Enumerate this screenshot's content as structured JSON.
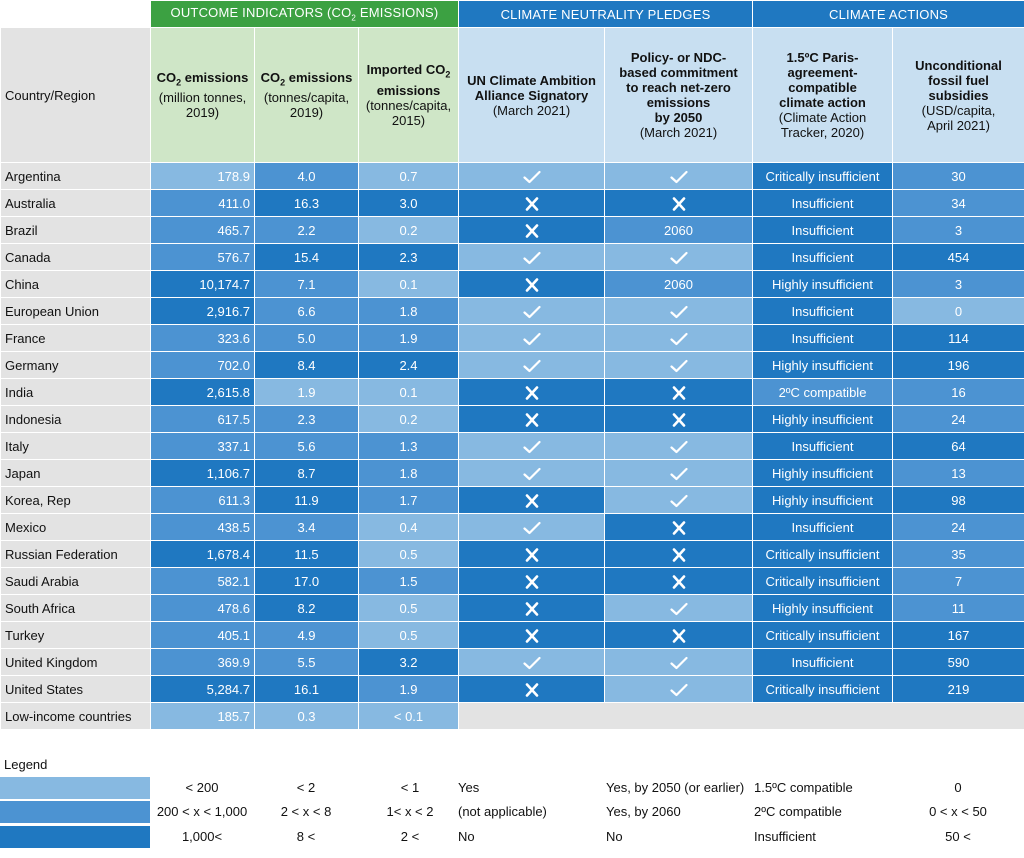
{
  "groups": {
    "outcome": "OUTCOME INDICATORS (CO2 EMISSIONS)",
    "pledges": "CLIMATE NEUTRALITY PLEDGES",
    "actions": "CLIMATE ACTIONS"
  },
  "headers": {
    "country": "Country/Region",
    "co2_total_bold": "CO2 emissions",
    "co2_total_sub": "(million tonnes, 2019)",
    "co2_capita_bold": "CO2 emissions",
    "co2_capita_sub": "(tonnes/capita, 2019)",
    "imported_bold": "Imported CO2 emissions",
    "imported_sub": "(tonnes/capita, 2015)",
    "un_bold": "UN Climate Ambition Alliance Signatory",
    "un_sub": "(March 2021)",
    "policy_bold": "Policy- or NDC-based commitment to reach net-zero emissions by 2050",
    "policy_sub": "(March 2021)",
    "paris_bold": "1.5ºC Paris-agreement-compatible climate action",
    "paris_sub": "(Climate Action Tracker, 2020)",
    "subsidies_bold": "Unconditional fossil fuel subsidies",
    "subsidies_sub": "(USD/capita, April 2021)"
  },
  "level_colors": {
    "1": "#87b9e1",
    "2": "#4c93d2",
    "3": "#1f78c1"
  },
  "rows": [
    {
      "country": "Argentina",
      "co2": "178.9",
      "co2_lvl": 1,
      "cap": "4.0",
      "cap_lvl": 2,
      "imp": "0.7",
      "imp_lvl": 1,
      "un": "check",
      "un_lvl": 1,
      "pol": "check",
      "pol_lvl": 1,
      "pol_text": "",
      "act": "Critically insufficient",
      "act_lvl": 3,
      "sub": "30",
      "sub_lvl": 2
    },
    {
      "country": "Australia",
      "co2": "411.0",
      "co2_lvl": 2,
      "cap": "16.3",
      "cap_lvl": 3,
      "imp": "3.0",
      "imp_lvl": 3,
      "un": "cross",
      "un_lvl": 3,
      "pol": "cross",
      "pol_lvl": 3,
      "pol_text": "",
      "act": "Insufficient",
      "act_lvl": 3,
      "sub": "34",
      "sub_lvl": 2
    },
    {
      "country": "Brazil",
      "co2": "465.7",
      "co2_lvl": 2,
      "cap": "2.2",
      "cap_lvl": 2,
      "imp": "0.2",
      "imp_lvl": 1,
      "un": "cross",
      "un_lvl": 3,
      "pol": "text",
      "pol_lvl": 2,
      "pol_text": "2060",
      "act": "Insufficient",
      "act_lvl": 3,
      "sub": "3",
      "sub_lvl": 2
    },
    {
      "country": "Canada",
      "co2": "576.7",
      "co2_lvl": 2,
      "cap": "15.4",
      "cap_lvl": 3,
      "imp": "2.3",
      "imp_lvl": 3,
      "un": "check",
      "un_lvl": 1,
      "pol": "check",
      "pol_lvl": 1,
      "pol_text": "",
      "act": "Insufficient",
      "act_lvl": 3,
      "sub": "454",
      "sub_lvl": 3
    },
    {
      "country": "China",
      "co2": "10,174.7",
      "co2_lvl": 3,
      "cap": "7.1",
      "cap_lvl": 2,
      "imp": "0.1",
      "imp_lvl": 1,
      "un": "cross",
      "un_lvl": 3,
      "pol": "text",
      "pol_lvl": 2,
      "pol_text": "2060",
      "act": "Highly insufficient",
      "act_lvl": 3,
      "sub": "3",
      "sub_lvl": 2
    },
    {
      "country": "European Union",
      "co2": "2,916.7",
      "co2_lvl": 3,
      "cap": "6.6",
      "cap_lvl": 2,
      "imp": "1.8",
      "imp_lvl": 2,
      "un": "check",
      "un_lvl": 1,
      "pol": "check",
      "pol_lvl": 1,
      "pol_text": "",
      "act": "Insufficient",
      "act_lvl": 3,
      "sub": "0",
      "sub_lvl": 1
    },
    {
      "country": "France",
      "co2": "323.6",
      "co2_lvl": 2,
      "cap": "5.0",
      "cap_lvl": 2,
      "imp": "1.9",
      "imp_lvl": 2,
      "un": "check",
      "un_lvl": 1,
      "pol": "check",
      "pol_lvl": 1,
      "pol_text": "",
      "act": "Insufficient",
      "act_lvl": 3,
      "sub": "114",
      "sub_lvl": 3
    },
    {
      "country": "Germany",
      "co2": "702.0",
      "co2_lvl": 2,
      "cap": "8.4",
      "cap_lvl": 3,
      "imp": "2.4",
      "imp_lvl": 3,
      "un": "check",
      "un_lvl": 1,
      "pol": "check",
      "pol_lvl": 1,
      "pol_text": "",
      "act": "Highly insufficient",
      "act_lvl": 3,
      "sub": "196",
      "sub_lvl": 3
    },
    {
      "country": "India",
      "co2": "2,615.8",
      "co2_lvl": 3,
      "cap": "1.9",
      "cap_lvl": 1,
      "imp": "0.1",
      "imp_lvl": 1,
      "un": "cross",
      "un_lvl": 3,
      "pol": "cross",
      "pol_lvl": 3,
      "pol_text": "",
      "act": "2ºC compatible",
      "act_lvl": 2,
      "sub": "16",
      "sub_lvl": 2
    },
    {
      "country": "Indonesia",
      "co2": "617.5",
      "co2_lvl": 2,
      "cap": "2.3",
      "cap_lvl": 2,
      "imp": "0.2",
      "imp_lvl": 1,
      "un": "cross",
      "un_lvl": 3,
      "pol": "cross",
      "pol_lvl": 3,
      "pol_text": "",
      "act": "Highly insufficient",
      "act_lvl": 3,
      "sub": "24",
      "sub_lvl": 2
    },
    {
      "country": "Italy",
      "co2": "337.1",
      "co2_lvl": 2,
      "cap": "5.6",
      "cap_lvl": 2,
      "imp": "1.3",
      "imp_lvl": 2,
      "un": "check",
      "un_lvl": 1,
      "pol": "check",
      "pol_lvl": 1,
      "pol_text": "",
      "act": "Insufficient",
      "act_lvl": 3,
      "sub": "64",
      "sub_lvl": 3
    },
    {
      "country": "Japan",
      "co2": "1,106.7",
      "co2_lvl": 3,
      "cap": "8.7",
      "cap_lvl": 3,
      "imp": "1.8",
      "imp_lvl": 2,
      "un": "check",
      "un_lvl": 1,
      "pol": "check",
      "pol_lvl": 1,
      "pol_text": "",
      "act": "Highly insufficient",
      "act_lvl": 3,
      "sub": "13",
      "sub_lvl": 2
    },
    {
      "country": "Korea, Rep",
      "co2": "611.3",
      "co2_lvl": 2,
      "cap": "11.9",
      "cap_lvl": 3,
      "imp": "1.7",
      "imp_lvl": 2,
      "un": "cross",
      "un_lvl": 3,
      "pol": "check",
      "pol_lvl": 1,
      "pol_text": "",
      "act": "Highly insufficient",
      "act_lvl": 3,
      "sub": "98",
      "sub_lvl": 3
    },
    {
      "country": "Mexico",
      "co2": "438.5",
      "co2_lvl": 2,
      "cap": "3.4",
      "cap_lvl": 2,
      "imp": "0.4",
      "imp_lvl": 1,
      "un": "check",
      "un_lvl": 1,
      "pol": "cross",
      "pol_lvl": 3,
      "pol_text": "",
      "act": "Insufficient",
      "act_lvl": 3,
      "sub": "24",
      "sub_lvl": 2
    },
    {
      "country": "Russian Federation",
      "co2": "1,678.4",
      "co2_lvl": 3,
      "cap": "11.5",
      "cap_lvl": 3,
      "imp": "0.5",
      "imp_lvl": 1,
      "un": "cross",
      "un_lvl": 3,
      "pol": "cross",
      "pol_lvl": 3,
      "pol_text": "",
      "act": "Critically insufficient",
      "act_lvl": 3,
      "sub": "35",
      "sub_lvl": 2
    },
    {
      "country": "Saudi Arabia",
      "co2": "582.1",
      "co2_lvl": 2,
      "cap": "17.0",
      "cap_lvl": 3,
      "imp": "1.5",
      "imp_lvl": 2,
      "un": "cross",
      "un_lvl": 3,
      "pol": "cross",
      "pol_lvl": 3,
      "pol_text": "",
      "act": "Critically insufficient",
      "act_lvl": 3,
      "sub": "7",
      "sub_lvl": 2
    },
    {
      "country": "South Africa",
      "co2": "478.6",
      "co2_lvl": 2,
      "cap": "8.2",
      "cap_lvl": 3,
      "imp": "0.5",
      "imp_lvl": 1,
      "un": "cross",
      "un_lvl": 3,
      "pol": "check",
      "pol_lvl": 1,
      "pol_text": "",
      "act": "Highly insufficient",
      "act_lvl": 3,
      "sub": "11",
      "sub_lvl": 2
    },
    {
      "country": "Turkey",
      "co2": "405.1",
      "co2_lvl": 2,
      "cap": "4.9",
      "cap_lvl": 2,
      "imp": "0.5",
      "imp_lvl": 1,
      "un": "cross",
      "un_lvl": 3,
      "pol": "cross",
      "pol_lvl": 3,
      "pol_text": "",
      "act": "Critically insufficient",
      "act_lvl": 3,
      "sub": "167",
      "sub_lvl": 3
    },
    {
      "country": "United Kingdom",
      "co2": "369.9",
      "co2_lvl": 2,
      "cap": "5.5",
      "cap_lvl": 2,
      "imp": "3.2",
      "imp_lvl": 3,
      "un": "check",
      "un_lvl": 1,
      "pol": "check",
      "pol_lvl": 1,
      "pol_text": "",
      "act": "Insufficient",
      "act_lvl": 3,
      "sub": "590",
      "sub_lvl": 3
    },
    {
      "country": "United States",
      "co2": "5,284.7",
      "co2_lvl": 3,
      "cap": "16.1",
      "cap_lvl": 3,
      "imp": "1.9",
      "imp_lvl": 2,
      "un": "cross",
      "un_lvl": 3,
      "pol": "check",
      "pol_lvl": 1,
      "pol_text": "",
      "act": "Critically insufficient",
      "act_lvl": 3,
      "sub": "219",
      "sub_lvl": 3
    }
  ],
  "low_income": {
    "country": "Low-income countries",
    "co2": "185.7",
    "co2_lvl": 1,
    "cap": "0.3",
    "cap_lvl": 1,
    "imp": "< 0.1",
    "imp_lvl": 1
  },
  "legend": {
    "title": "Legend",
    "rows": [
      {
        "co2": "< 200",
        "cap": "< 2",
        "imp": "< 1",
        "un": "Yes",
        "pol": "Yes, by 2050 (or earlier)",
        "act": "1.5ºC compatible",
        "sub": "0"
      },
      {
        "co2": "200 < x < 1,000",
        "cap": "2 < x < 8",
        "imp": "1< x < 2",
        "un": "(not applicable)",
        "pol": "Yes, by 2060",
        "act": "2ºC compatible",
        "sub": "0 < x < 50"
      },
      {
        "co2": "1,000<",
        "cap": "8 <",
        "imp": "2 <",
        "un": "No",
        "pol": "No",
        "act": "Insufficient",
        "sub": "50 <"
      }
    ]
  }
}
